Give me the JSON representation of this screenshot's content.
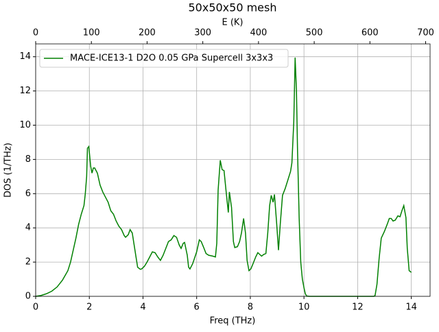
{
  "chart_data": {
    "type": "line",
    "title": "50x50x50 mesh",
    "xlabel": "Freq (THz)",
    "ylabel": "DOS (1/THz)",
    "x2label": "E (K)",
    "x": [
      0,
      0.2,
      0.4,
      0.6,
      0.8,
      1.0,
      1.2,
      1.3,
      1.4,
      1.5,
      1.6,
      1.7,
      1.8,
      1.85,
      1.9,
      1.93,
      1.98,
      2.05,
      2.1,
      2.15,
      2.2,
      2.3,
      2.4,
      2.5,
      2.6,
      2.7,
      2.8,
      2.9,
      3.0,
      3.1,
      3.2,
      3.3,
      3.35,
      3.45,
      3.52,
      3.6,
      3.67,
      3.75,
      3.8,
      3.9,
      3.95,
      4.05,
      4.15,
      4.25,
      4.35,
      4.45,
      4.55,
      4.65,
      4.75,
      4.85,
      4.95,
      5.05,
      5.15,
      5.25,
      5.35,
      5.42,
      5.5,
      5.55,
      5.65,
      5.7,
      5.75,
      5.85,
      6.0,
      6.1,
      6.17,
      6.25,
      6.35,
      6.45,
      6.6,
      6.7,
      6.75,
      6.8,
      6.88,
      6.95,
      7.02,
      7.1,
      7.18,
      7.22,
      7.3,
      7.37,
      7.42,
      7.52,
      7.6,
      7.67,
      7.75,
      7.82,
      7.88,
      7.95,
      8.02,
      8.1,
      8.2,
      8.28,
      8.35,
      8.42,
      8.5,
      8.58,
      8.65,
      8.72,
      8.78,
      8.85,
      8.9,
      8.98,
      9.05,
      9.12,
      9.2,
      9.3,
      9.4,
      9.5,
      9.55,
      9.62,
      9.67,
      9.72,
      9.76,
      9.82,
      9.88,
      9.94,
      10.0,
      10.05,
      10.1,
      10.2,
      12.0,
      12.6,
      12.65,
      12.72,
      12.8,
      12.88,
      13.0,
      13.1,
      13.18,
      13.25,
      13.32,
      13.4,
      13.5,
      13.58,
      13.65,
      13.72,
      13.8,
      13.85,
      13.92,
      14.0
    ],
    "series": [
      {
        "name": "MACE-ICE13-1 D2O 0.05 GPa Supercell 3x3x3",
        "color": "#008000",
        "values": [
          0,
          0.05,
          0.15,
          0.3,
          0.55,
          0.95,
          1.5,
          2.0,
          2.7,
          3.4,
          4.2,
          4.8,
          5.3,
          6.0,
          7.0,
          8.65,
          8.75,
          7.6,
          7.2,
          7.5,
          7.5,
          7.2,
          6.5,
          6.1,
          5.8,
          5.5,
          5.0,
          4.8,
          4.4,
          4.1,
          3.9,
          3.55,
          3.45,
          3.6,
          3.9,
          3.7,
          3.0,
          2.2,
          1.7,
          1.58,
          1.6,
          1.75,
          2.0,
          2.3,
          2.6,
          2.55,
          2.3,
          2.1,
          2.4,
          2.8,
          3.2,
          3.3,
          3.55,
          3.45,
          3.0,
          2.8,
          3.1,
          3.15,
          2.4,
          1.7,
          1.6,
          1.9,
          2.6,
          3.3,
          3.2,
          2.9,
          2.5,
          2.4,
          2.35,
          2.3,
          3.1,
          6.2,
          7.95,
          7.4,
          7.35,
          6.1,
          4.9,
          6.1,
          5.2,
          3.2,
          2.85,
          2.9,
          3.2,
          3.7,
          4.55,
          3.7,
          2.1,
          1.5,
          1.6,
          1.9,
          2.3,
          2.55,
          2.45,
          2.35,
          2.45,
          2.5,
          3.7,
          5.3,
          5.9,
          5.5,
          5.95,
          4.3,
          2.7,
          4.3,
          5.9,
          6.3,
          6.8,
          7.3,
          7.8,
          10.2,
          13.95,
          12.0,
          8.5,
          4.6,
          2.0,
          1.0,
          0.5,
          0.15,
          0.02,
          0,
          0,
          0,
          0.05,
          0.7,
          2.2,
          3.4,
          3.8,
          4.2,
          4.55,
          4.55,
          4.4,
          4.45,
          4.7,
          4.65,
          5.0,
          5.3,
          4.6,
          2.8,
          1.5,
          1.4
        ]
      }
    ],
    "xlim": [
      0,
      14.7
    ],
    "xticks": [
      0,
      2,
      4,
      6,
      8,
      10,
      12,
      14
    ],
    "x2lim": [
      0,
      708
    ],
    "x2ticks": [
      0,
      100,
      200,
      300,
      400,
      500,
      600,
      700
    ],
    "ylim": [
      0,
      14.75
    ],
    "yticks": [
      0,
      2,
      4,
      6,
      8,
      10,
      12,
      14
    ],
    "grid": true,
    "legend": "upper left"
  }
}
